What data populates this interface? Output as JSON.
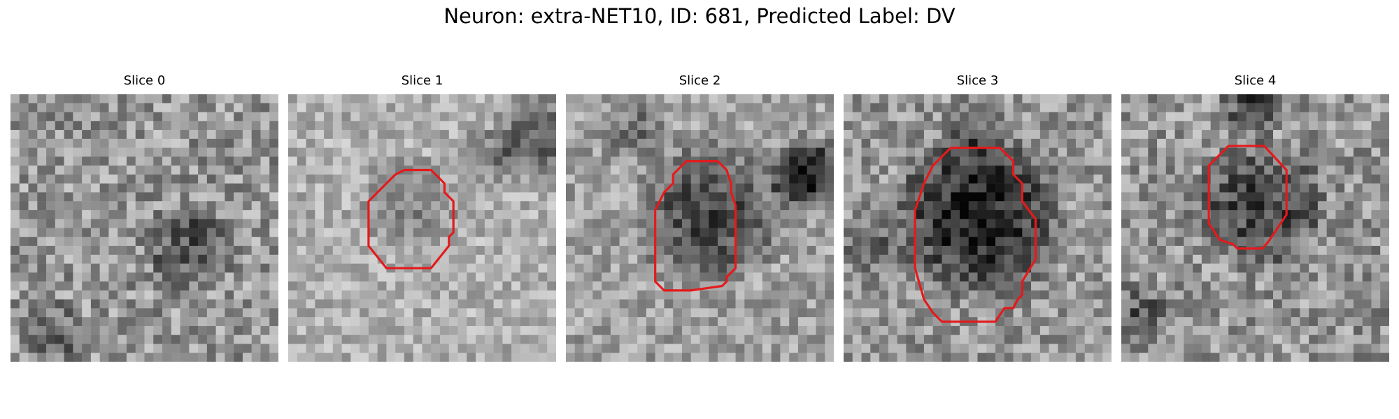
{
  "figure": {
    "title": "Neuron: extra-NET10, ID: 681, Predicted Label: DV"
  },
  "panels": [
    {
      "title": "Slice 0",
      "has_contour": false,
      "contour_color": "#e41a1c",
      "image_kind": "grayscale-noise-patch"
    },
    {
      "title": "Slice 1",
      "has_contour": true,
      "contour_color": "#e41a1c",
      "image_kind": "grayscale-noise-patch"
    },
    {
      "title": "Slice 2",
      "has_contour": true,
      "contour_color": "#e41a1c",
      "image_kind": "grayscale-noise-patch"
    },
    {
      "title": "Slice 3",
      "has_contour": true,
      "contour_color": "#e41a1c",
      "image_kind": "grayscale-noise-patch"
    },
    {
      "title": "Slice 4",
      "has_contour": true,
      "contour_color": "#e41a1c",
      "image_kind": "grayscale-noise-patch"
    }
  ]
}
